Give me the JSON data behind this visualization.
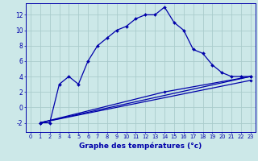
{
  "title": "",
  "xlabel": "Graphe des températures (°c)",
  "ylabel": "",
  "background_color": "#cce8e8",
  "grid_color": "#aacccc",
  "line_color": "#0000aa",
  "xlim": [
    -0.5,
    23.5
  ],
  "ylim": [
    -3.2,
    13.5
  ],
  "xticks": [
    0,
    1,
    2,
    3,
    4,
    5,
    6,
    7,
    8,
    9,
    10,
    11,
    12,
    13,
    14,
    15,
    16,
    17,
    18,
    19,
    20,
    21,
    22,
    23
  ],
  "yticks": [
    -2,
    0,
    2,
    4,
    6,
    8,
    10,
    12
  ],
  "line1_x": [
    1,
    2,
    3,
    4,
    5,
    6,
    7,
    8,
    9,
    10,
    11,
    12,
    13,
    14,
    15,
    16,
    17,
    18,
    19,
    20,
    21,
    22,
    23
  ],
  "line1_y": [
    -2,
    -2,
    3,
    4,
    3,
    6,
    8,
    9,
    10,
    10.5,
    11.5,
    12,
    12,
    13,
    11,
    10,
    7.5,
    7,
    5.5,
    4.5,
    4,
    4,
    4
  ],
  "line2_x": [
    1,
    23
  ],
  "line2_y": [
    -2,
    4
  ],
  "line3_x": [
    1,
    14,
    23
  ],
  "line3_y": [
    -2,
    2.0,
    4
  ],
  "line4_x": [
    1,
    23
  ],
  "line4_y": [
    -2,
    3.5
  ]
}
